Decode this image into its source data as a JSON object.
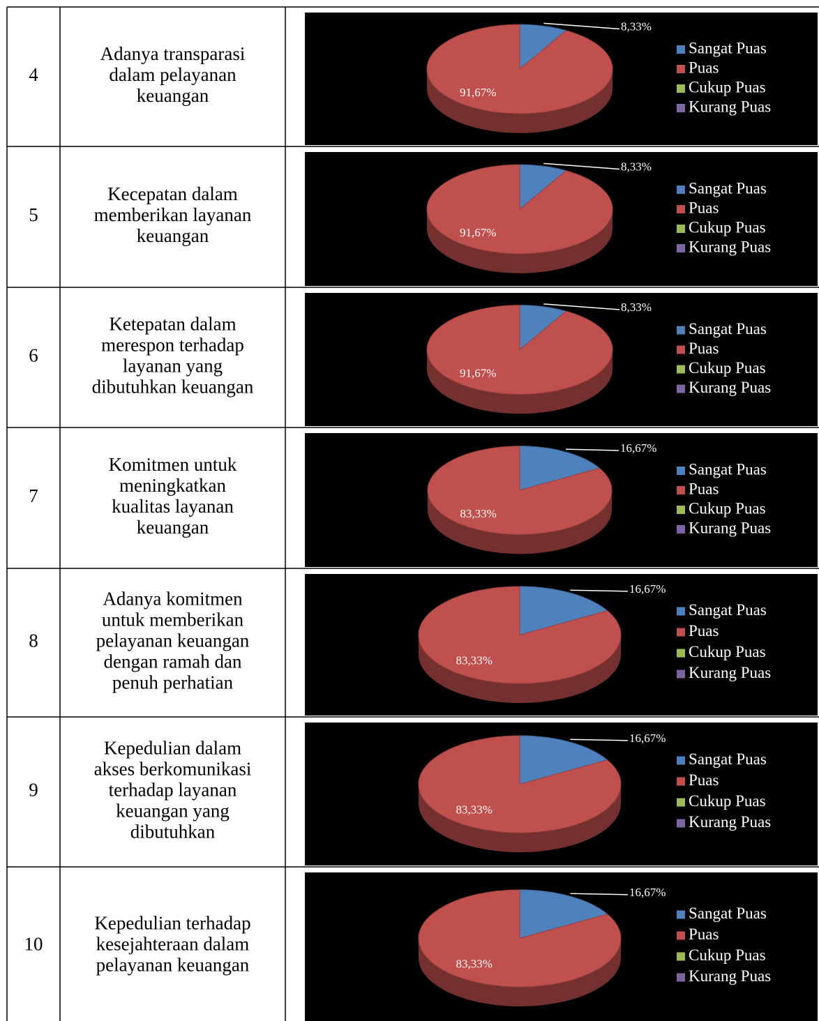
{
  "table": {
    "rows": [
      {
        "number": "4",
        "label": [
          "Adanya transparasi",
          "dalam pelayanan",
          "keuangan"
        ],
        "chart": {
          "type": "pie",
          "categories": [
            "Sangat Puas",
            "Puas",
            "Cukup Puas",
            "Kurang Puas"
          ],
          "values": [
            8.33,
            91.67,
            0,
            0
          ],
          "value_labels": [
            "8,33%",
            "91,67%",
            null,
            null
          ],
          "colors": [
            "#4f81bd",
            "#c0504d",
            "#9bbb59",
            "#8064a2"
          ]
        }
      },
      {
        "number": "5",
        "label": [
          "Kecepatan dalam",
          "memberikan layanan",
          "keuangan"
        ],
        "chart": {
          "type": "pie",
          "categories": [
            "Sangat Puas",
            "Puas",
            "Cukup Puas",
            "Kurang Puas"
          ],
          "values": [
            8.33,
            91.67,
            0,
            0
          ],
          "value_labels": [
            "8,33%",
            "91,67%",
            null,
            null
          ],
          "colors": [
            "#4f81bd",
            "#c0504d",
            "#9bbb59",
            "#8064a2"
          ]
        }
      },
      {
        "number": "6",
        "label": [
          "Ketepatan dalam",
          "merespon terhadap",
          "layanan yang",
          "dibutuhkan keuangan"
        ],
        "chart": {
          "type": "pie",
          "categories": [
            "Sangat Puas",
            "Puas",
            "Cukup Puas",
            "Kurang Puas"
          ],
          "values": [
            8.33,
            91.67,
            0,
            0
          ],
          "value_labels": [
            "8,33%",
            "91,67%",
            null,
            null
          ],
          "colors": [
            "#4f81bd",
            "#c0504d",
            "#9bbb59",
            "#8064a2"
          ]
        }
      },
      {
        "number": "7",
        "label": [
          "Komitmen untuk",
          "meningkatkan",
          "kualitas layanan",
          "keuangan"
        ],
        "chart": {
          "type": "pie",
          "categories": [
            "Sangat Puas",
            "Puas",
            "Cukup Puas",
            "Kurang Puas"
          ],
          "values": [
            16.67,
            83.33,
            0,
            0
          ],
          "value_labels": [
            "16,67%",
            "83,33%",
            null,
            null
          ],
          "colors": [
            "#4f81bd",
            "#c0504d",
            "#9bbb59",
            "#8064a2"
          ]
        }
      },
      {
        "number": "8",
        "label": [
          "Adanya komitmen",
          "untuk memberikan",
          "pelayanan keuangan",
          "dengan ramah dan",
          "penuh perhatian"
        ],
        "chart": {
          "type": "pie",
          "categories": [
            "Sangat Puas",
            "Puas",
            "Cukup Puas",
            "Kurang Puas"
          ],
          "values": [
            16.67,
            83.33,
            0,
            0
          ],
          "value_labels": [
            "16,67%",
            "83,33%",
            null,
            null
          ],
          "colors": [
            "#4f81bd",
            "#c0504d",
            "#9bbb59",
            "#8064a2"
          ]
        }
      },
      {
        "number": "9",
        "label": [
          "Kepedulian dalam",
          "akses berkomunikasi",
          "terhadap layanan",
          "keuangan yang",
          "dibutuhkan"
        ],
        "chart": {
          "type": "pie",
          "categories": [
            "Sangat Puas",
            "Puas",
            "Cukup Puas",
            "Kurang Puas"
          ],
          "values": [
            16.67,
            83.33,
            0,
            0
          ],
          "value_labels": [
            "16,67%",
            "83,33%",
            null,
            null
          ],
          "colors": [
            "#4f81bd",
            "#c0504d",
            "#9bbb59",
            "#8064a2"
          ]
        }
      },
      {
        "number": "10",
        "label": [
          "Kepedulian terhadap",
          "kesejahteraan dalam",
          "pelayanan keuangan"
        ],
        "chart": {
          "type": "pie",
          "categories": [
            "Sangat Puas",
            "Puas",
            "Cukup Puas",
            "Kurang Puas"
          ],
          "values": [
            16.67,
            83.33,
            0,
            0
          ],
          "value_labels": [
            "16,67%",
            "83,33%",
            null,
            null
          ],
          "colors": [
            "#4f81bd",
            "#c0504d",
            "#9bbb59",
            "#8064a2"
          ]
        }
      }
    ]
  }
}
